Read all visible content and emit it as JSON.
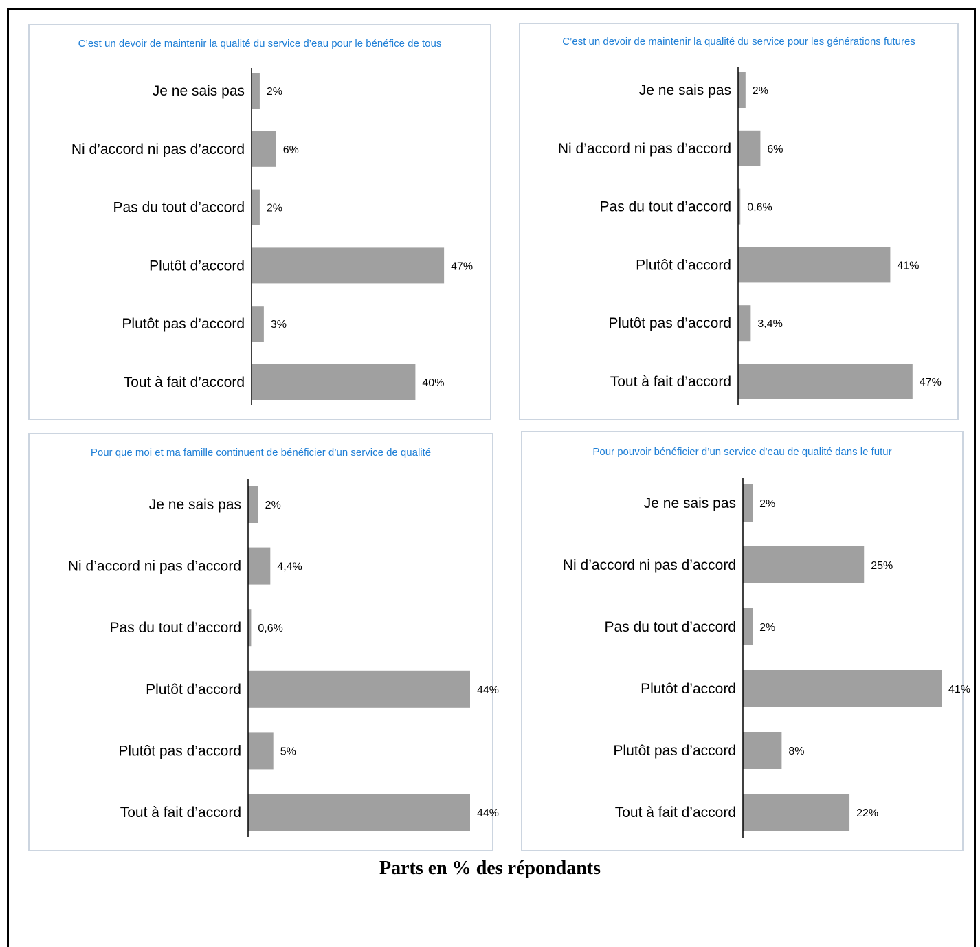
{
  "caption": "Parts en % des répondants",
  "colors": {
    "bar": "#a0a0a0",
    "title": "#1f7fd6",
    "panel_border": "#ccd5e0",
    "axis": "#000000"
  },
  "chart_data": [
    {
      "type": "bar",
      "orientation": "horizontal",
      "title": "C’est un devoir de maintenir la qualité du service d’eau pour le bénéfice de tous",
      "categories": [
        "Je ne sais pas",
        "Ni d’accord ni pas d’accord",
        "Pas du tout d’accord",
        "Plutôt d’accord",
        "Plutôt pas d’accord",
        "Tout à fait d’accord"
      ],
      "values": [
        2,
        6,
        2,
        47,
        3,
        40
      ],
      "value_labels": [
        "2%",
        "6%",
        "2%",
        "47%",
        "3%",
        "40%"
      ],
      "xlim": [
        0,
        50
      ]
    },
    {
      "type": "bar",
      "orientation": "horizontal",
      "title": "C’est un devoir de maintenir la qualité du service pour les générations futures",
      "categories": [
        "Je ne sais pas",
        "Ni d’accord ni pas d’accord",
        "Pas du tout d’accord",
        "Plutôt d’accord",
        "Plutôt pas d’accord",
        "Tout à fait d’accord"
      ],
      "values": [
        2,
        6,
        0.6,
        41,
        3.4,
        47
      ],
      "value_labels": [
        "2%",
        "6%",
        "0,6%",
        "41%",
        "3,4%",
        "47%"
      ],
      "xlim": [
        0,
        50
      ]
    },
    {
      "type": "bar",
      "orientation": "horizontal",
      "title": "Pour que moi et ma famille continuent de bénéficier d’un service de qualité",
      "categories": [
        "Je ne sais pas",
        "Ni d’accord ni pas d’accord",
        "Pas du tout d’accord",
        "Plutôt d’accord",
        "Plutôt pas d’accord",
        "Tout à fait d’accord"
      ],
      "values": [
        2,
        4.4,
        0.6,
        44,
        5,
        44
      ],
      "value_labels": [
        "2%",
        "4,4%",
        "0,6%",
        "44%",
        "5%",
        "44%"
      ],
      "xlim": [
        0,
        44
      ]
    },
    {
      "type": "bar",
      "orientation": "horizontal",
      "title": "Pour pouvoir bénéficier d’un service d’eau de qualité dans le futur",
      "categories": [
        "Je ne sais pas",
        "Ni d’accord ni pas d’accord",
        "Pas du tout d’accord",
        "Plutôt d’accord",
        "Plutôt pas d’accord",
        "Tout à fait d’accord"
      ],
      "values": [
        2,
        25,
        2,
        41,
        8,
        22
      ],
      "value_labels": [
        "2%",
        "25%",
        "2%",
        "41%",
        "8%",
        "22%"
      ],
      "xlim": [
        0,
        41
      ]
    }
  ]
}
